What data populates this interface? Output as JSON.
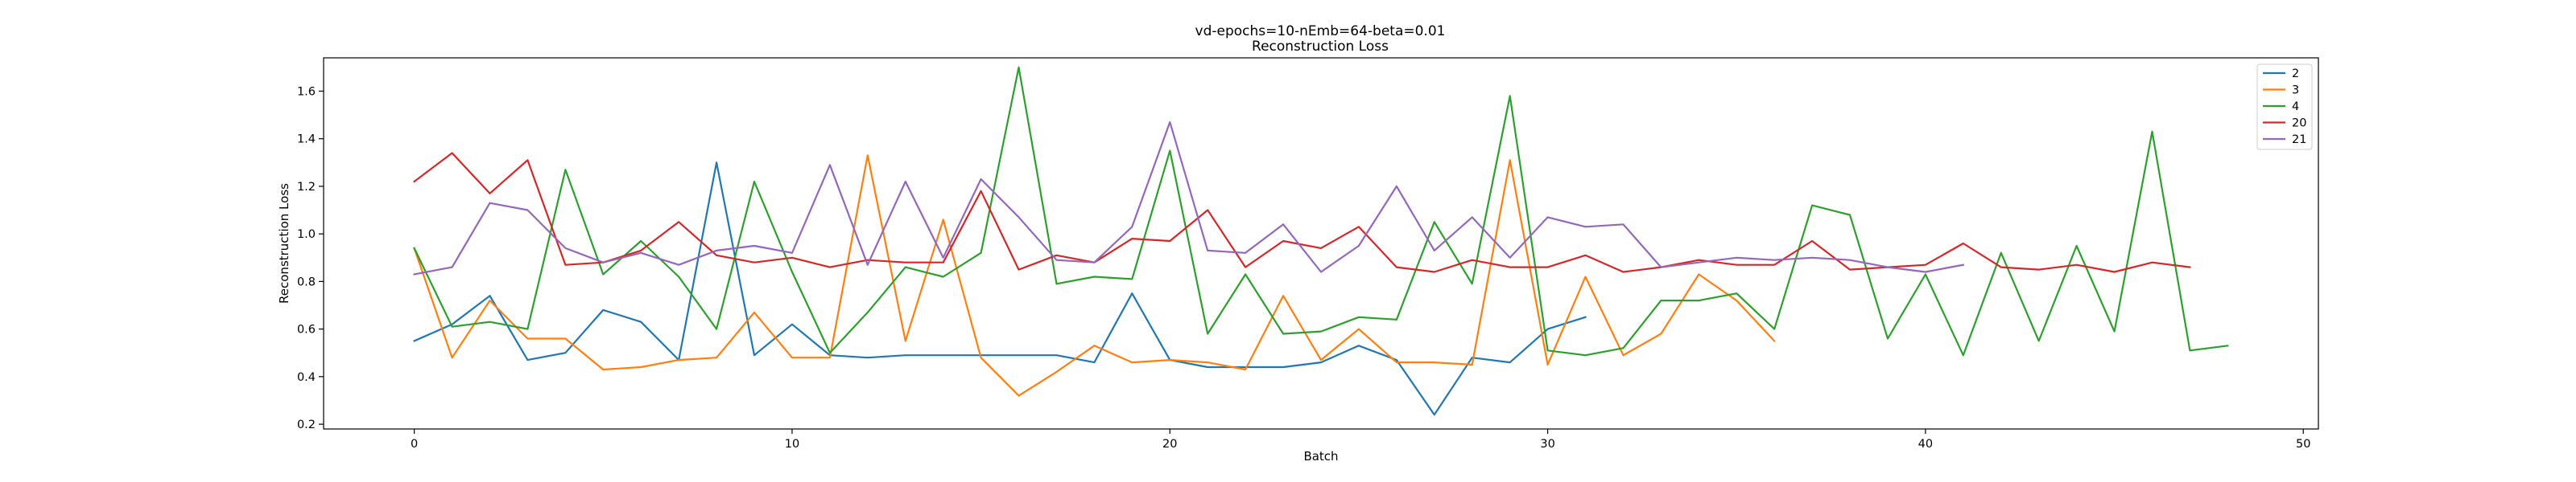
{
  "chart_data": {
    "type": "line",
    "title": "vd-epochs=10-nEmb=64-beta=0.01",
    "subtitle": "Reconstruction Loss",
    "xlabel": "Batch",
    "ylabel": "Reconstruction Loss",
    "xlim": [
      -2.4,
      50.4
    ],
    "ylim": [
      0.18,
      1.74
    ],
    "xticks": [
      0,
      10,
      20,
      30,
      40,
      50
    ],
    "yticks": [
      0.2,
      0.4,
      0.6,
      0.8,
      1.0,
      1.2,
      1.4,
      1.6
    ],
    "xtick_labels": [
      "0",
      "10",
      "20",
      "30",
      "40",
      "50"
    ],
    "ytick_labels": [
      "0.2",
      "0.4",
      "0.6",
      "0.8",
      "1.0",
      "1.2",
      "1.4",
      "1.6"
    ],
    "grid": false,
    "legend_position": "top-right",
    "series": [
      {
        "name": "2",
        "color": "#1f77b4",
        "values": [
          0.55,
          0.62,
          0.74,
          0.47,
          0.5,
          0.68,
          0.63,
          0.47,
          1.3,
          0.49,
          0.62,
          0.49,
          0.48,
          0.49,
          0.49,
          0.49,
          0.49,
          0.49,
          0.46,
          0.75,
          0.47,
          0.44,
          0.44,
          0.44,
          0.46,
          0.53,
          0.47,
          0.24,
          0.48,
          0.46,
          0.6,
          0.65
        ]
      },
      {
        "name": "3",
        "color": "#ff7f0e",
        "values": [
          0.94,
          0.48,
          0.72,
          0.56,
          0.56,
          0.43,
          0.44,
          0.47,
          0.48,
          0.67,
          0.48,
          0.48,
          1.33,
          0.55,
          1.06,
          0.48,
          0.32,
          0.42,
          0.53,
          0.46,
          0.47,
          0.46,
          0.43,
          0.74,
          0.47,
          0.6,
          0.46,
          0.46,
          0.45,
          1.31,
          0.45,
          0.82,
          0.49,
          0.58,
          0.83,
          0.72,
          0.55
        ]
      },
      {
        "name": "4",
        "color": "#2ca02c",
        "values": [
          0.94,
          0.61,
          0.63,
          0.6,
          1.27,
          0.83,
          0.97,
          0.82,
          0.6,
          1.22,
          0.84,
          0.5,
          0.67,
          0.86,
          0.82,
          0.92,
          1.7,
          0.79,
          0.82,
          0.81,
          1.35,
          0.58,
          0.83,
          0.58,
          0.59,
          0.65,
          0.64,
          1.05,
          0.79,
          1.58,
          0.51,
          0.49,
          0.52,
          0.72,
          0.72,
          0.75,
          0.6,
          1.12,
          1.08,
          0.56,
          0.83,
          0.49,
          0.92,
          0.55,
          0.95,
          0.59,
          1.43,
          0.51,
          0.53
        ]
      },
      {
        "name": "20",
        "color": "#d62728",
        "values": [
          1.22,
          1.34,
          1.17,
          1.31,
          0.87,
          0.88,
          0.93,
          1.05,
          0.91,
          0.88,
          0.9,
          0.86,
          0.89,
          0.88,
          0.88,
          1.18,
          0.85,
          0.91,
          0.88,
          0.98,
          0.97,
          1.1,
          0.86,
          0.97,
          0.94,
          1.03,
          0.86,
          0.84,
          0.89,
          0.86,
          0.86,
          0.91,
          0.84,
          0.86,
          0.89,
          0.87,
          0.87,
          0.97,
          0.85,
          0.86,
          0.87,
          0.96,
          0.86,
          0.85,
          0.87,
          0.84,
          0.88,
          0.86
        ]
      },
      {
        "name": "21",
        "color": "#9467bd",
        "values": [
          0.83,
          0.86,
          1.13,
          1.1,
          0.94,
          0.88,
          0.92,
          0.87,
          0.93,
          0.95,
          0.92,
          1.29,
          0.87,
          1.22,
          0.9,
          1.23,
          1.07,
          0.89,
          0.88,
          1.03,
          1.47,
          0.93,
          0.92,
          1.04,
          0.84,
          0.95,
          1.2,
          0.93,
          1.07,
          0.9,
          1.07,
          1.03,
          1.04,
          0.86,
          0.88,
          0.9,
          0.89,
          0.9,
          0.89,
          0.86,
          0.84,
          0.87
        ]
      }
    ]
  }
}
